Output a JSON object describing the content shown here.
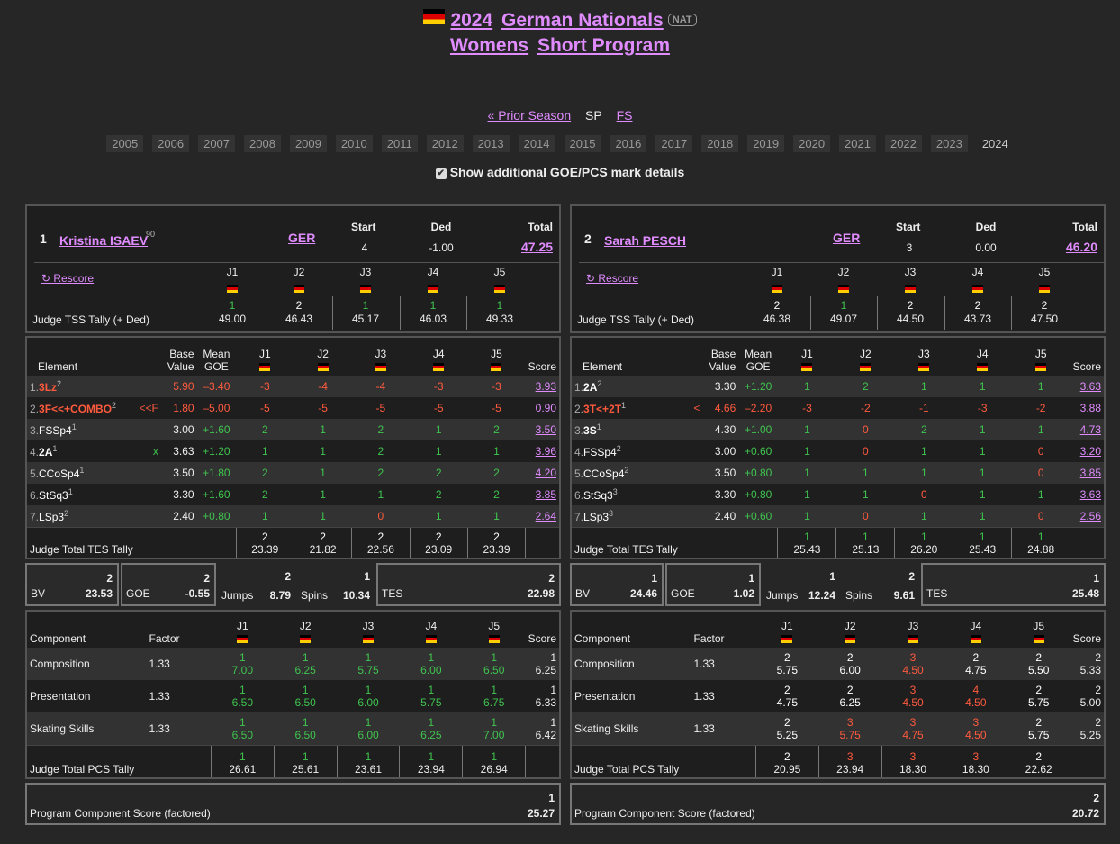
{
  "title": {
    "year": "2024",
    "event": "German Nationals",
    "badge": "NAT",
    "line2a": "Womens",
    "line2b": "Short Program"
  },
  "nav": {
    "prior": "« Prior Season",
    "sp": "SP",
    "fs": "FS"
  },
  "years": [
    "2005",
    "2006",
    "2007",
    "2008",
    "2009",
    "2010",
    "2011",
    "2012",
    "2013",
    "2014",
    "2015",
    "2016",
    "2017",
    "2018",
    "2019",
    "2020",
    "2021",
    "2022",
    "2023",
    "2024"
  ],
  "checkbox_label": "Show additional GOE/PCS mark details",
  "labels": {
    "start": "Start",
    "ded": "Ded",
    "total": "Total",
    "rescore": "↻ Rescore",
    "tss_tally": "Judge TSS Tally (+ Ded)",
    "element": "Element",
    "base": "Base",
    "value": "Value",
    "mean": "Mean",
    "goe": "GOE",
    "score": "Score",
    "tes_tally": "Judge Total TES Tally",
    "bv": "BV",
    "goe_s": "GOE",
    "jumps": "Jumps",
    "spins": "Spins",
    "tes": "TES",
    "component": "Component",
    "factor": "Factor",
    "pcs_tally": "Judge Total PCS Tally",
    "pcs_factored": "Program Component Score (factored)",
    "j1": "J1",
    "j2": "J2",
    "j3": "J3",
    "j4": "J4",
    "j5": "J5"
  },
  "skaters": [
    {
      "rank": "1",
      "name": "Kristina ISAEV",
      "sup": "90",
      "nation": "GER",
      "start": "4",
      "ded": "-1.00",
      "total": "47.25",
      "tss_ranks": [
        "1",
        "2",
        "1",
        "1",
        "1"
      ],
      "tss": [
        "49.00",
        "46.43",
        "45.17",
        "46.03",
        "49.33"
      ],
      "elements": [
        {
          "n": "1.",
          "name": "3Lz",
          "sup": "2",
          "note": "",
          "base": "5.90",
          "mean": "–3.40",
          "goe": [
            "-3",
            "-4",
            "-4",
            "-3",
            "-3"
          ],
          "score": "3.93"
        },
        {
          "n": "2.",
          "name": "3F<<+COMBO",
          "sup": "2",
          "note": "<<F",
          "base": "1.80",
          "mean": "–5.00",
          "goe": [
            "-5",
            "-5",
            "-5",
            "-5",
            "-5"
          ],
          "score": "0.90"
        },
        {
          "n": "3.",
          "name": "FSSp4",
          "sup": "1",
          "note": "",
          "base": "3.00",
          "mean": "+1.60",
          "goe": [
            "2",
            "1",
            "2",
            "1",
            "2"
          ],
          "score": "3.50"
        },
        {
          "n": "4.",
          "name": "2A",
          "sup": "1",
          "note": "x",
          "base": "3.63",
          "mean": "+1.20",
          "goe": [
            "1",
            "1",
            "2",
            "1",
            "1"
          ],
          "score": "3.96"
        },
        {
          "n": "5.",
          "name": "CCoSp4",
          "sup": "1",
          "note": "",
          "base": "3.50",
          "mean": "+1.80",
          "goe": [
            "2",
            "1",
            "2",
            "2",
            "2"
          ],
          "score": "4.20"
        },
        {
          "n": "6.",
          "name": "StSq3",
          "sup": "1",
          "note": "",
          "base": "3.30",
          "mean": "+1.60",
          "goe": [
            "2",
            "1",
            "1",
            "2",
            "2"
          ],
          "score": "3.85"
        },
        {
          "n": "7.",
          "name": "LSp3",
          "sup": "2",
          "note": "",
          "base": "2.40",
          "mean": "+0.80",
          "goe": [
            "1",
            "1",
            "0",
            "1",
            "1"
          ],
          "score": "2.64"
        }
      ],
      "tes_ranks": [
        "2",
        "2",
        "2",
        "2",
        "2"
      ],
      "tes_tally": [
        "23.39",
        "21.82",
        "22.56",
        "23.09",
        "23.39"
      ],
      "summary": {
        "bv_rank": "2",
        "bv": "23.53",
        "goe_rank": "2",
        "goe": "-0.55",
        "jumps_rank": "2",
        "jumps": "8.79",
        "spins_rank": "1",
        "spins": "10.34",
        "tes_rank": "2",
        "tes": "22.98"
      },
      "components": [
        {
          "name": "Composition",
          "factor": "1.33",
          "ranks": [
            "1",
            "1",
            "1",
            "1",
            "1"
          ],
          "marks": [
            "7.00",
            "6.25",
            "5.75",
            "6.00",
            "6.50"
          ],
          "score_rank": "1",
          "score": "6.25"
        },
        {
          "name": "Presentation",
          "factor": "1.33",
          "ranks": [
            "1",
            "1",
            "1",
            "1",
            "1"
          ],
          "marks": [
            "6.50",
            "6.50",
            "6.00",
            "5.75",
            "6.75"
          ],
          "score_rank": "1",
          "score": "6.33"
        },
        {
          "name": "Skating Skills",
          "factor": "1.33",
          "ranks": [
            "1",
            "1",
            "1",
            "1",
            "1"
          ],
          "marks": [
            "6.50",
            "6.50",
            "6.00",
            "6.25",
            "7.00"
          ],
          "score_rank": "1",
          "score": "6.42"
        }
      ],
      "pcs_ranks": [
        "1",
        "1",
        "1",
        "1",
        "1"
      ],
      "pcs_tally": [
        "26.61",
        "25.61",
        "23.61",
        "23.94",
        "26.94"
      ],
      "pcs_rank": "1",
      "pcs": "25.27"
    },
    {
      "rank": "2",
      "name": "Sarah PESCH",
      "sup": "",
      "nation": "GER",
      "start": "3",
      "ded": "0.00",
      "total": "46.20",
      "tss_ranks": [
        "2",
        "1",
        "2",
        "2",
        "2"
      ],
      "tss": [
        "46.38",
        "49.07",
        "44.50",
        "43.73",
        "47.50"
      ],
      "elements": [
        {
          "n": "1.",
          "name": "2A",
          "sup": "2",
          "note": "",
          "base": "3.30",
          "mean": "+1.20",
          "goe": [
            "1",
            "2",
            "1",
            "1",
            "1"
          ],
          "score": "3.63"
        },
        {
          "n": "2.",
          "name": "3T<+2T",
          "sup": "1",
          "note": "<",
          "base": "4.66",
          "mean": "–2.20",
          "goe": [
            "-3",
            "-2",
            "-1",
            "-3",
            "-2"
          ],
          "score": "3.88"
        },
        {
          "n": "3.",
          "name": "3S",
          "sup": "1",
          "note": "",
          "base": "4.30",
          "mean": "+1.00",
          "goe": [
            "1",
            "0",
            "2",
            "1",
            "1"
          ],
          "score": "4.73"
        },
        {
          "n": "4.",
          "name": "FSSp4",
          "sup": "2",
          "note": "",
          "base": "3.00",
          "mean": "+0.60",
          "goe": [
            "1",
            "0",
            "1",
            "1",
            "0"
          ],
          "score": "3.20"
        },
        {
          "n": "5.",
          "name": "CCoSp4",
          "sup": "2",
          "note": "",
          "base": "3.50",
          "mean": "+0.80",
          "goe": [
            "1",
            "1",
            "1",
            "1",
            "0"
          ],
          "score": "3.85"
        },
        {
          "n": "6.",
          "name": "StSq3",
          "sup": "3",
          "note": "",
          "base": "3.30",
          "mean": "+0.80",
          "goe": [
            "1",
            "1",
            "0",
            "1",
            "1"
          ],
          "score": "3.63"
        },
        {
          "n": "7.",
          "name": "LSp3",
          "sup": "3",
          "note": "",
          "base": "2.40",
          "mean": "+0.60",
          "goe": [
            "1",
            "0",
            "1",
            "1",
            "0"
          ],
          "score": "2.56"
        }
      ],
      "tes_ranks": [
        "1",
        "1",
        "1",
        "1",
        "1"
      ],
      "tes_tally": [
        "25.43",
        "25.13",
        "26.20",
        "25.43",
        "24.88"
      ],
      "summary": {
        "bv_rank": "1",
        "bv": "24.46",
        "goe_rank": "1",
        "goe": "1.02",
        "jumps_rank": "1",
        "jumps": "12.24",
        "spins_rank": "2",
        "spins": "9.61",
        "tes_rank": "1",
        "tes": "25.48"
      },
      "components": [
        {
          "name": "Composition",
          "factor": "1.33",
          "ranks": [
            "2",
            "2",
            "3",
            "2",
            "2"
          ],
          "marks": [
            "5.75",
            "6.00",
            "4.50",
            "4.75",
            "5.50"
          ],
          "score_rank": "2",
          "score": "5.33"
        },
        {
          "name": "Presentation",
          "factor": "1.33",
          "ranks": [
            "2",
            "2",
            "3",
            "4",
            "2"
          ],
          "marks": [
            "4.75",
            "6.25",
            "4.50",
            "4.50",
            "5.75"
          ],
          "score_rank": "2",
          "score": "5.00"
        },
        {
          "name": "Skating Skills",
          "factor": "1.33",
          "ranks": [
            "2",
            "3",
            "3",
            "3",
            "2"
          ],
          "marks": [
            "5.25",
            "5.75",
            "4.75",
            "4.50",
            "5.75"
          ],
          "score_rank": "2",
          "score": "5.25"
        }
      ],
      "pcs_ranks": [
        "2",
        "3",
        "3",
        "3",
        "2"
      ],
      "pcs_tally": [
        "20.95",
        "23.94",
        "18.30",
        "18.30",
        "22.62"
      ],
      "pcs_rank": "2",
      "pcs": "20.72"
    }
  ],
  "colors": {
    "link": "#e08cff",
    "positive": "#3fc44f",
    "negative": "#ff5a3e",
    "level": "#ff9a2a"
  }
}
